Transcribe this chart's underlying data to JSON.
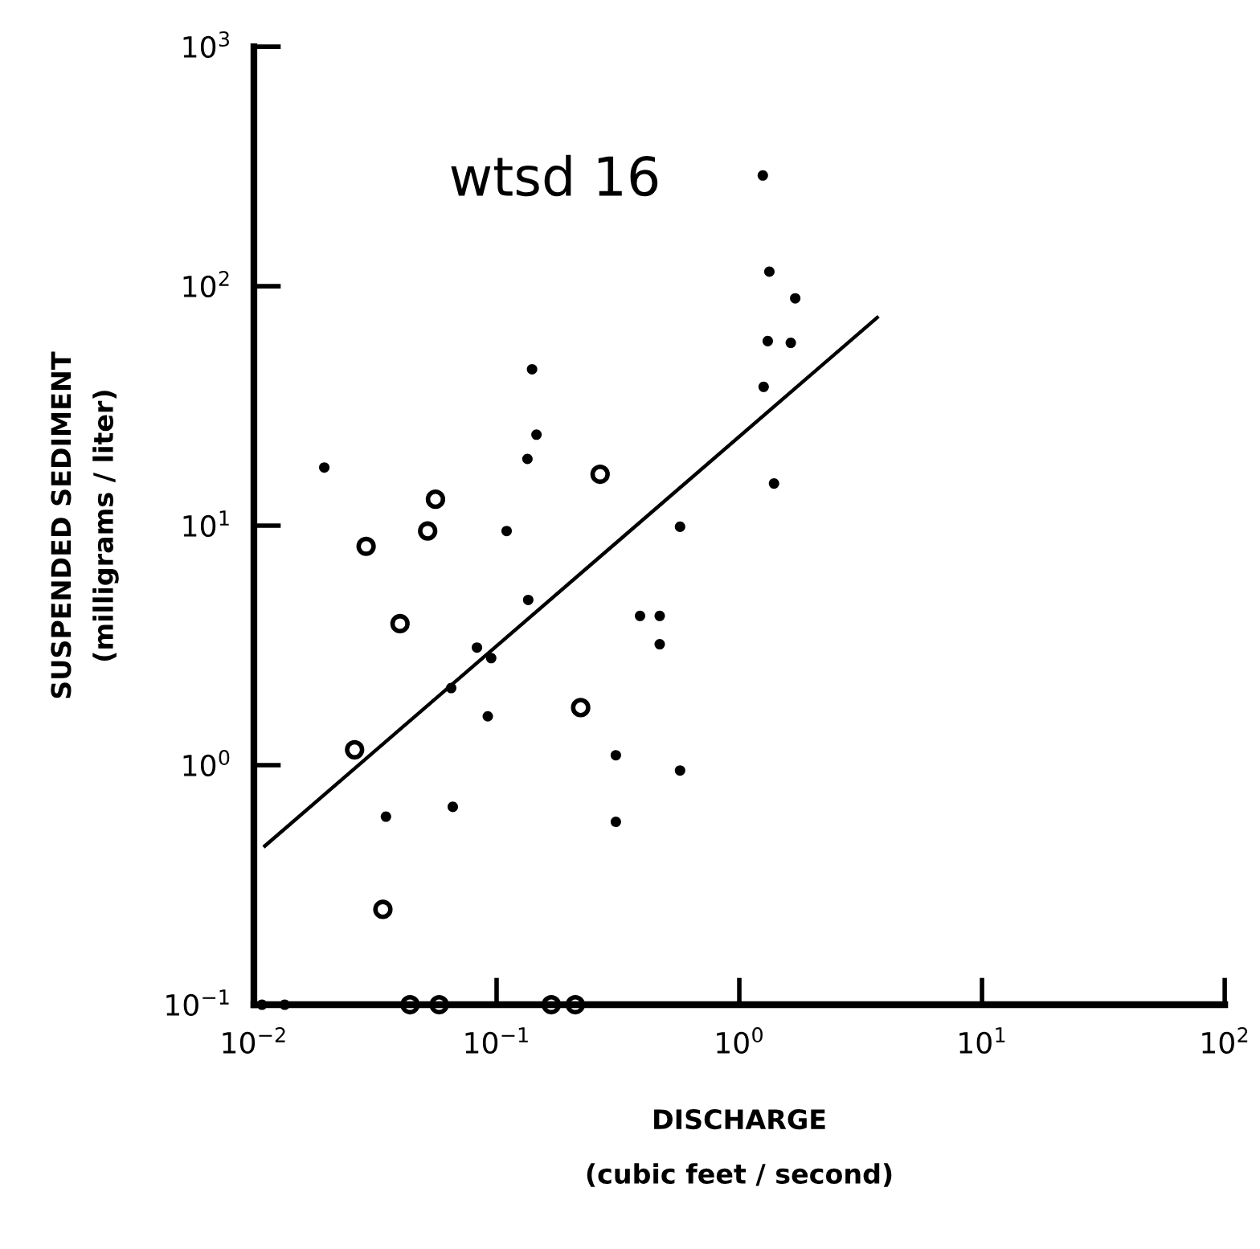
{
  "chart_data": {
    "type": "scatter",
    "title": null,
    "xlabel": "DISCHARGE\n(cubic feet / second)",
    "ylabel": "SUSPENDED SEDIMENT\n(milligrams / liter)",
    "annotations": [
      "wtsd 16"
    ],
    "log": "xy",
    "grid": false,
    "legend": false,
    "xlim": [
      0.01,
      100
    ],
    "ylim": [
      0.1,
      1000
    ],
    "xticks": [
      {
        "value": 0.01,
        "label": "10$^{−2}$"
      },
      {
        "value": 0.1,
        "label": "10$^{−1}$"
      },
      {
        "value": 1,
        "label": "10$^{0}$"
      },
      {
        "value": 10,
        "label": "10$^{1}$"
      },
      {
        "value": 100,
        "label": "10$^{2}$"
      }
    ],
    "yticks": [
      {
        "value": 0.1,
        "label": "10$^{−1}$"
      },
      {
        "value": 1,
        "label": "10$^{0}$"
      },
      {
        "value": 10,
        "label": "10$^{1}$"
      },
      {
        "value": 100,
        "label": "10$^{2}$"
      },
      {
        "value": 1000,
        "label": "10$^{3}$"
      }
    ],
    "series": [
      {
        "type": "scatter",
        "color": "#000000",
        "marker": "circle",
        "x": [
          0.0195,
          0.14,
          0.146,
          0.134,
          0.11,
          0.135,
          0.083,
          0.095,
          0.065,
          0.092,
          0.066,
          0.035,
          0.31,
          0.31,
          0.57,
          0.57,
          0.39,
          0.47,
          0.47,
          0.0108,
          0.0134,
          1.25,
          1.33,
          1.7,
          1.31,
          1.63,
          1.26,
          1.39
        ],
        "values": [
          17.5,
          45,
          24,
          19,
          9.5,
          4.9,
          3.1,
          2.8,
          2.1,
          1.6,
          0.67,
          0.61,
          1.1,
          0.58,
          0.95,
          9.9,
          4.2,
          4.2,
          3.2,
          0.1,
          0.1,
          290,
          115,
          89,
          59,
          58,
          38,
          15
        ]
      },
      {
        "color": "#000000",
        "marker": "circle",
        "x": [
          0.056,
          0.052,
          0.029,
          0.267,
          0.04,
          0.222,
          0.026,
          0.034,
          0.044,
          0.058,
          0.168,
          0.211
        ],
        "values": [
          12.9,
          9.5,
          8.2,
          16.4,
          3.9,
          1.74,
          1.16,
          0.25,
          0.1,
          0.1,
          0.1,
          0.1
        ]
      },
      {
        "type": "line",
        "color": "#000000",
        "marker": "none",
        "line_style": "solid",
        "x": [
          0.0111,
          3.7
        ],
        "values": [
          0.46,
          74
        ]
      }
    ]
  }
}
